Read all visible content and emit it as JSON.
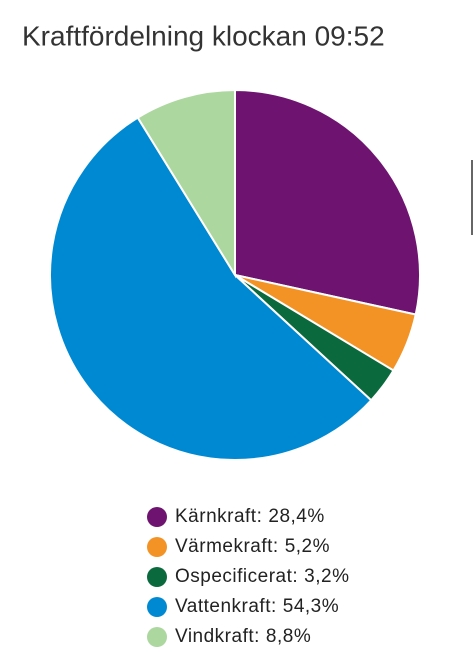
{
  "chart_data": {
    "type": "pie",
    "title": "Kraftfördelning klockan 09:52",
    "categories": [
      "Kärnkraft:",
      "Värmekraft:",
      "Ospecificerat:",
      "Vattenkraft:",
      "Vindkraft:"
    ],
    "values": [
      28.4,
      5.2,
      3.2,
      54.3,
      8.8
    ],
    "value_labels": [
      "28,4%",
      "5,2%",
      "3,2%",
      "54,3%",
      "8,8%"
    ],
    "colors": [
      "#6e1470",
      "#f39325",
      "#0a6a3e",
      "#0089d3",
      "#acd79f"
    ]
  }
}
